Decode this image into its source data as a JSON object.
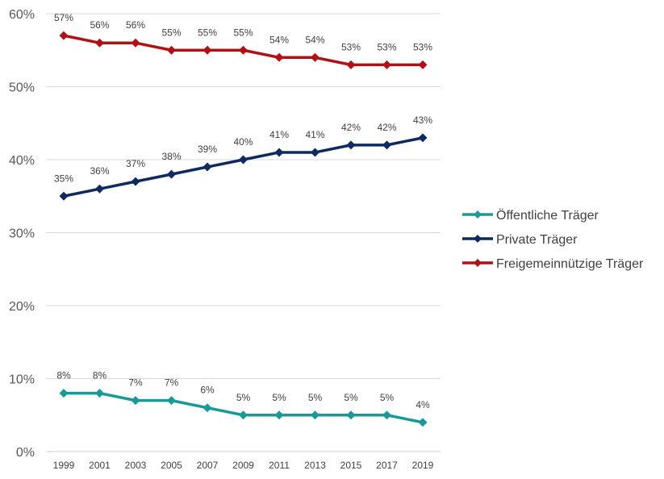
{
  "chart_data": {
    "type": "line",
    "title": "",
    "xlabel": "",
    "ylabel": "",
    "x": [
      "1999",
      "2001",
      "2003",
      "2005",
      "2007",
      "2009",
      "2011",
      "2013",
      "2015",
      "2017",
      "2019"
    ],
    "ylim": [
      0,
      60
    ],
    "yticks": [
      0,
      10,
      20,
      30,
      40,
      50,
      60
    ],
    "ytick_labels": [
      "0%",
      "10%",
      "20%",
      "30%",
      "40%",
      "50%",
      "60%"
    ],
    "grid": true,
    "legend_position": "right",
    "marker": "diamond",
    "series": [
      {
        "name": "Öffentliche Träger",
        "color": "#1a9a96",
        "values": [
          8,
          8,
          7,
          7,
          6,
          5,
          5,
          5,
          5,
          5,
          4
        ],
        "labels": [
          "8%",
          "8%",
          "7%",
          "7%",
          "6%",
          "5%",
          "5%",
          "5%",
          "5%",
          "5%",
          "4%"
        ]
      },
      {
        "name": "Private Träger",
        "color": "#0f2a5e",
        "values": [
          35,
          36,
          37,
          38,
          39,
          40,
          41,
          41,
          42,
          42,
          43
        ],
        "labels": [
          "35%",
          "36%",
          "37%",
          "38%",
          "39%",
          "40%",
          "41%",
          "41%",
          "42%",
          "42%",
          "43%"
        ]
      },
      {
        "name": "Freigemeinnützige Träger",
        "color": "#b01116",
        "values": [
          57,
          56,
          56,
          55,
          55,
          55,
          54,
          54,
          53,
          53,
          53
        ],
        "labels": [
          "57%",
          "56%",
          "56%",
          "55%",
          "55%",
          "55%",
          "54%",
          "54%",
          "53%",
          "53%",
          "53%"
        ]
      }
    ]
  }
}
